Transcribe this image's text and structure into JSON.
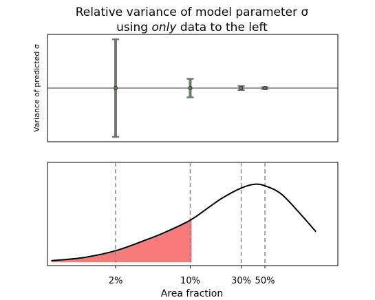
{
  "chart_data": [
    {
      "type": "errorbar",
      "title_line1": "Relative variance of model parameter σ",
      "title_line2_pre": "using ",
      "title_line2_em": "only",
      "title_line2_post": " data to the left",
      "ylabel": "Variance of predicted σ",
      "x": [
        2,
        10,
        30,
        50
      ],
      "y": [
        0,
        0,
        0,
        0
      ],
      "yerr": [
        1.0,
        0.19,
        0.04,
        0.02
      ],
      "ylim": [
        -1.1,
        1.1
      ],
      "xscale": "log",
      "reference_line": 0,
      "color": "#6b7c6b",
      "xticks_shown": false,
      "yticks_shown": false
    },
    {
      "type": "area",
      "description_curve": "lognormal-shaped density",
      "x": [
        0.5,
        1,
        2,
        4,
        6,
        10,
        15,
        20,
        30,
        40,
        50,
        70,
        100,
        150
      ],
      "y": [
        0.02,
        0.06,
        0.15,
        0.3,
        0.4,
        0.55,
        0.72,
        0.84,
        0.97,
        1.02,
        1.0,
        0.9,
        0.68,
        0.4
      ],
      "shade_to_x": 10,
      "shade_color": "#f77b7b",
      "vlines": [
        2,
        10,
        30,
        50
      ],
      "xticks": [
        2,
        10,
        30,
        50
      ],
      "xtick_labels": [
        "2%",
        "10%",
        "30%",
        "50%"
      ],
      "xlabel": "Area fraction",
      "xscale": "log",
      "yticks_shown": false
    }
  ]
}
